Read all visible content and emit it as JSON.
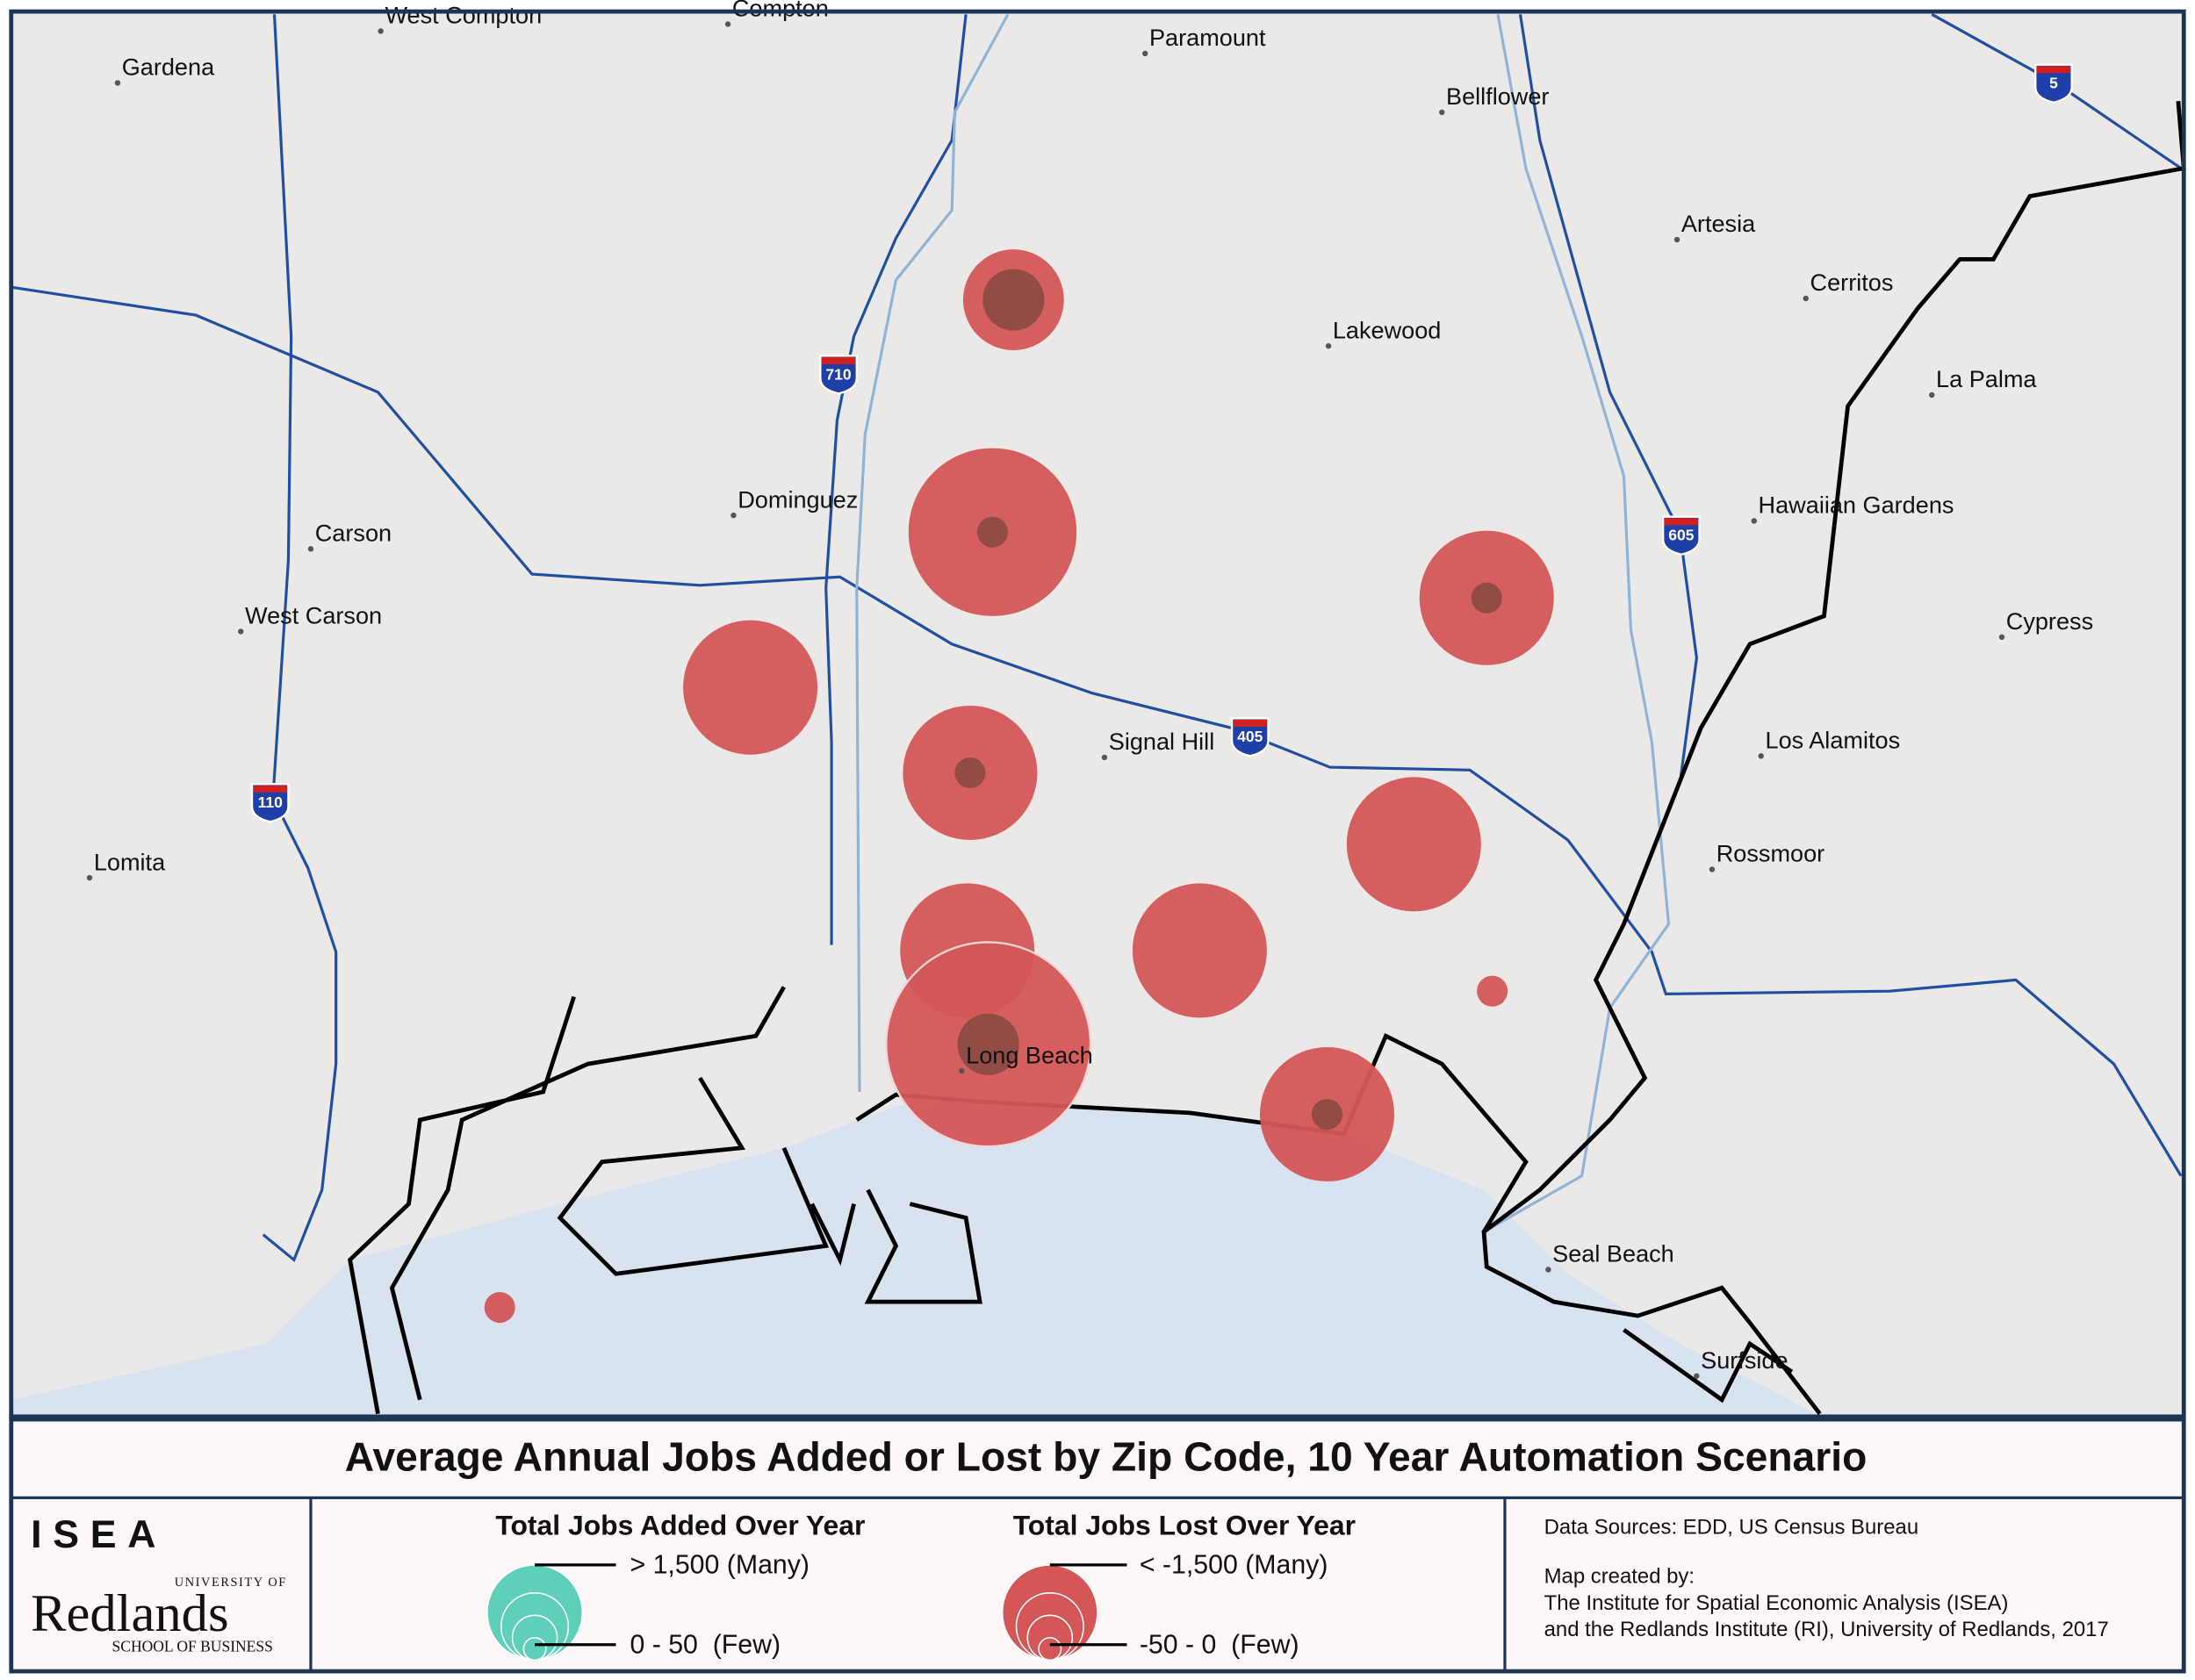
{
  "map": {
    "places": [
      "West Compton",
      "Compton",
      "Paramount",
      "Gardena",
      "Bellflower",
      "Artesia",
      "Cerritos",
      "Lakewood",
      "La Palma",
      "Dominguez",
      "Carson",
      "Hawaiian Gardens",
      "West Carson",
      "Cypress",
      "Signal Hill",
      "Los Alamitos",
      "Rossmoor",
      "Lomita",
      "Long Beach",
      "Seal Beach",
      "Surfside"
    ],
    "highways": [
      "5",
      "710",
      "605",
      "405",
      "110"
    ]
  },
  "title": "Average Annual Jobs Added or Lost by Zip Code, 10 Year Automation Scenario",
  "logo": {
    "name": "ISEA",
    "university": "UNIVERSITY OF",
    "school": "Redlands",
    "division": "SCHOOL OF BUSINESS"
  },
  "legend": {
    "added": {
      "heading": "Total Jobs Added Over Year",
      "max": "> 1,500 (Many)",
      "min": "0 - 50  (Few)"
    },
    "lost": {
      "heading": "Total Jobs Lost Over Year",
      "max": "< -1,500 (Many)",
      "min": "-50 - 0  (Few)"
    }
  },
  "credits": [
    "Data Sources: EDD, US Census Bureau",
    "Map created by:",
    "The Institute for Spatial Economic Analysis (ISEA)",
    "and the Redlands Institute (RI), University of Redlands, 2017"
  ]
}
